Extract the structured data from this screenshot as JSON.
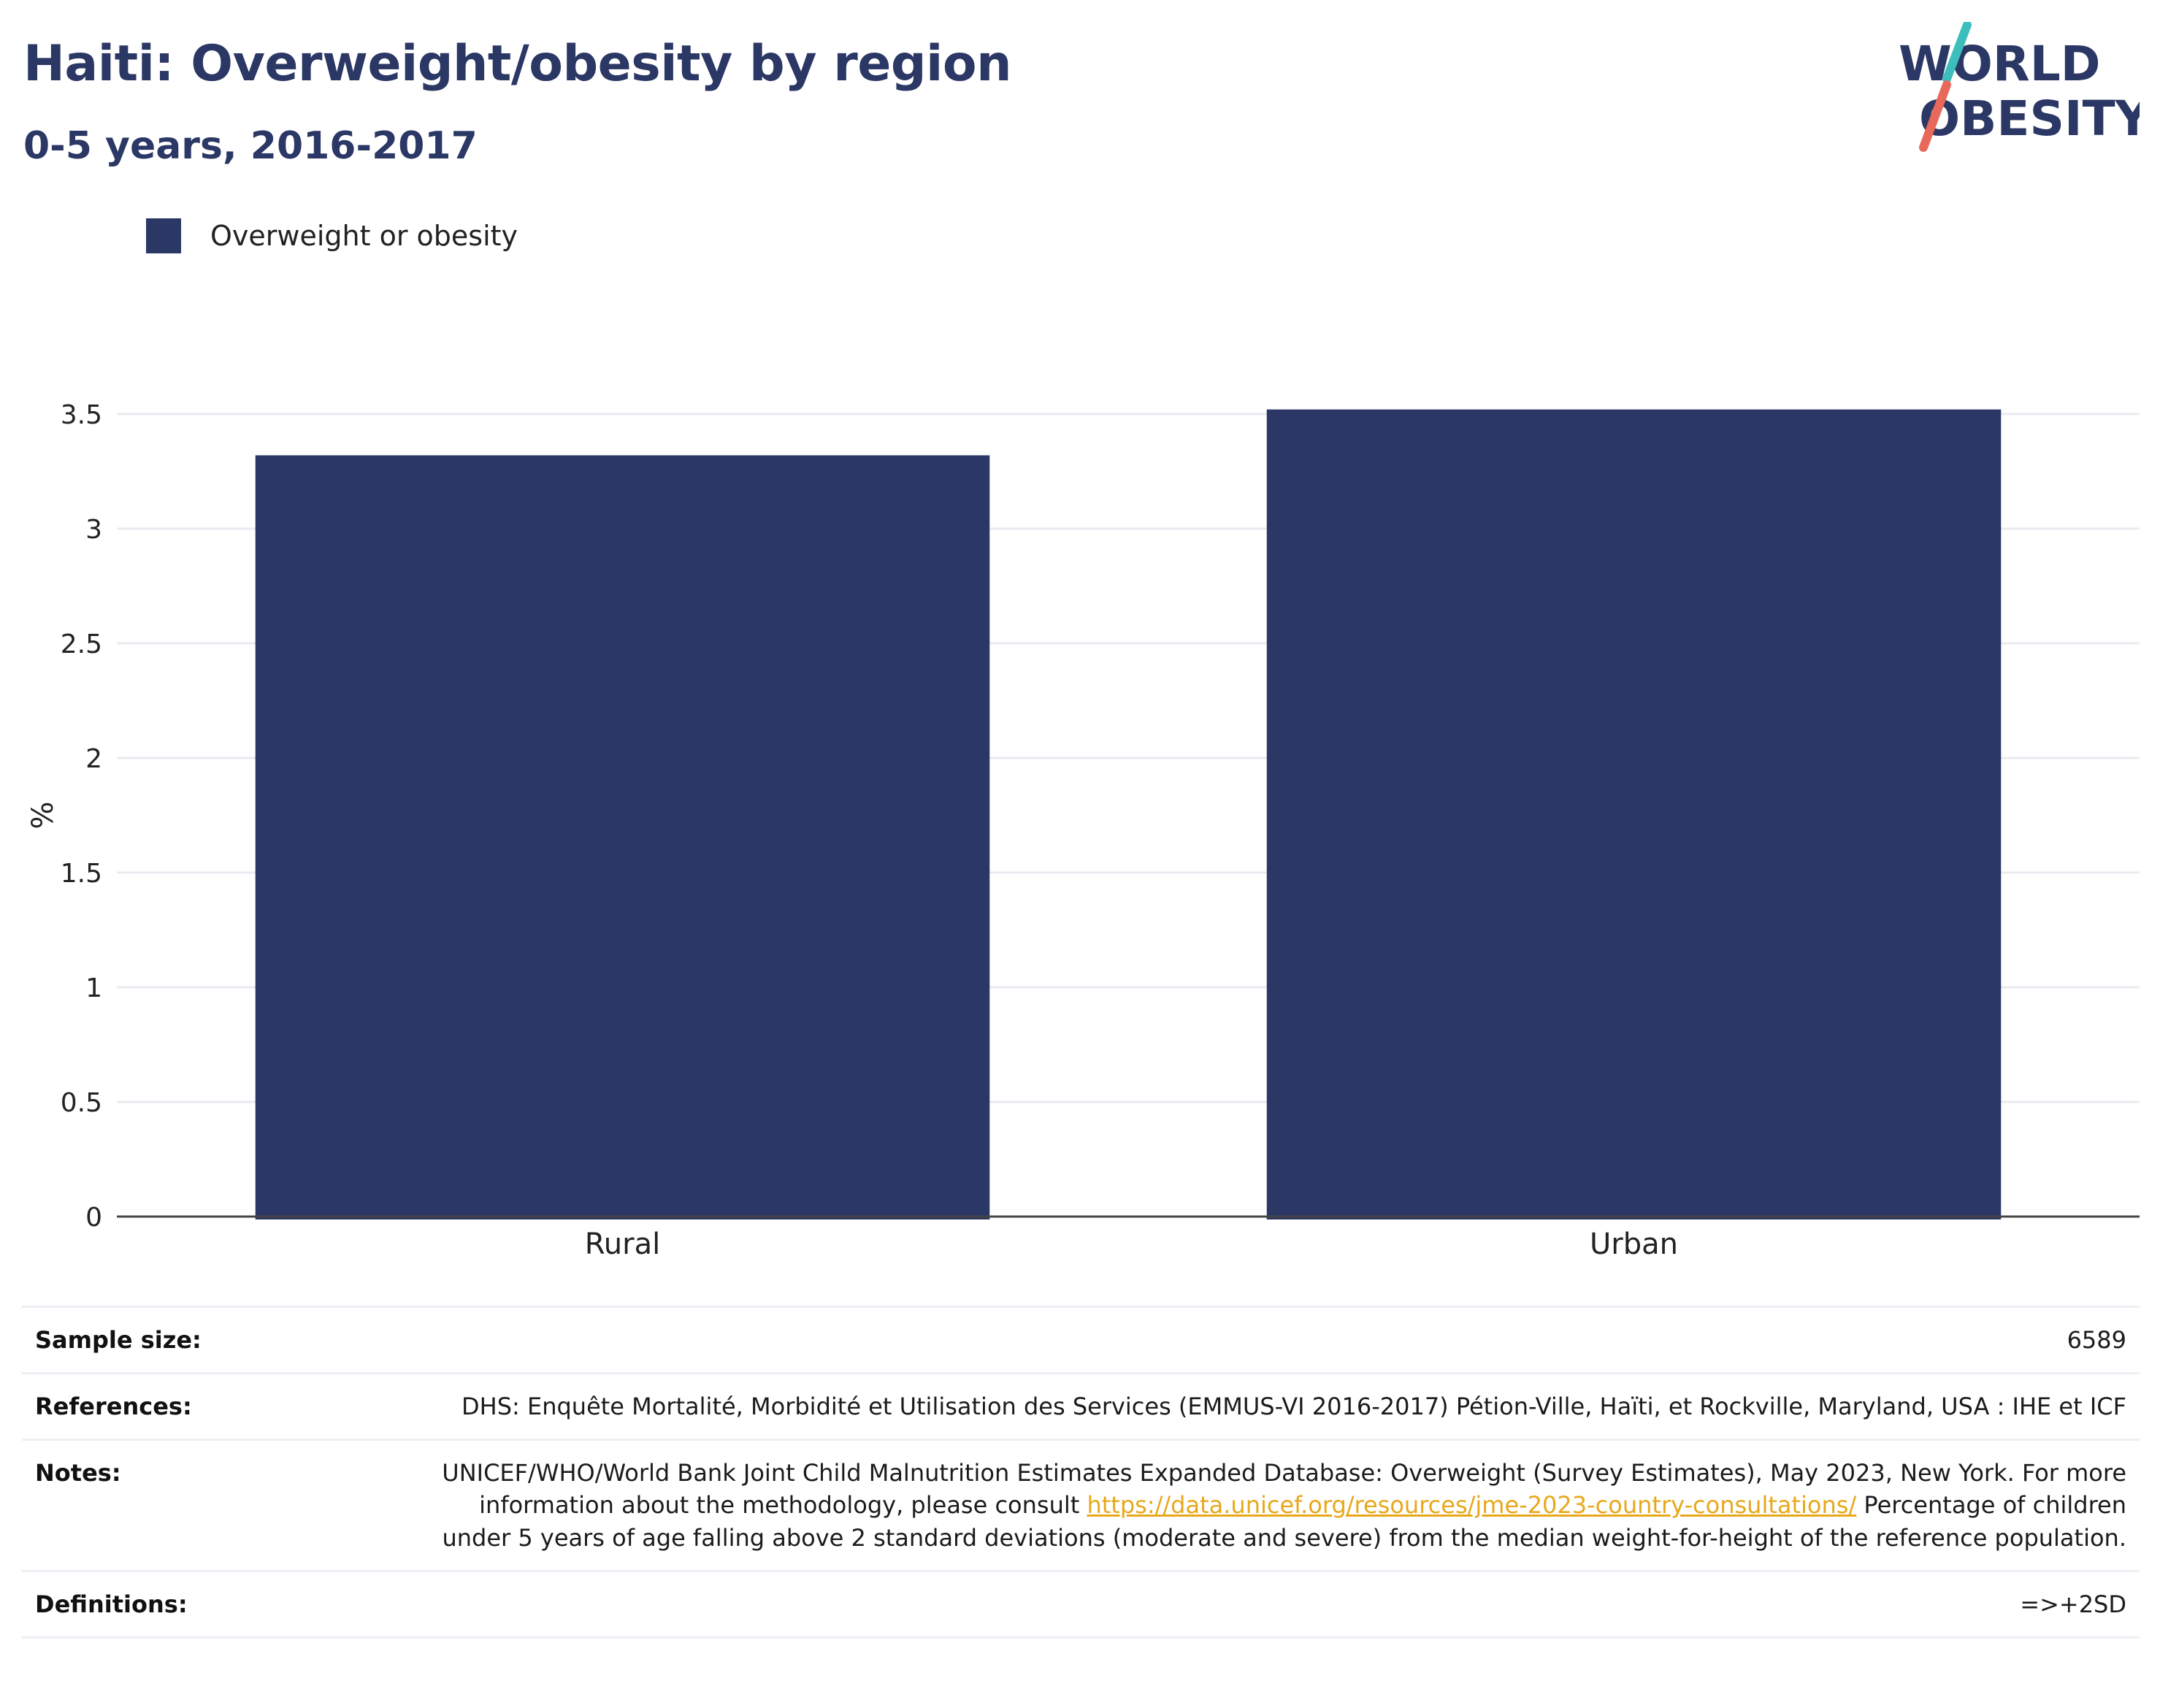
{
  "header": {
    "title": "Haiti: Overweight/obesity by region",
    "subtitle": "0-5 years, 2016-2017"
  },
  "logo": {
    "line1": "WORLD",
    "line2": "OBESITY",
    "accent_teal": "#3cbfbc",
    "accent_coral": "#e8685a"
  },
  "colors": {
    "bar": "#2b3764",
    "heading": "#2b3764",
    "link": "#e8a81c"
  },
  "chart_data": {
    "type": "bar",
    "categories": [
      "Rural",
      "Urban"
    ],
    "series": [
      {
        "name": "Overweight or obesity",
        "values": [
          3.32,
          3.52
        ],
        "color": "#2b3764"
      }
    ],
    "ylabel": "%",
    "ylim": [
      0,
      3.5
    ],
    "yticks": [
      {
        "value": 0,
        "label": "0"
      },
      {
        "value": 0.5,
        "label": "0.5"
      },
      {
        "value": 1,
        "label": "1"
      },
      {
        "value": 1.5,
        "label": "1.5"
      },
      {
        "value": 2,
        "label": "2"
      },
      {
        "value": 2.5,
        "label": "2.5"
      },
      {
        "value": 3,
        "label": "3"
      },
      {
        "value": 3.5,
        "label": "3.5"
      }
    ],
    "grid": true,
    "legend_position": "top-left"
  },
  "info": {
    "sample_size": {
      "label": "Sample size:",
      "value": "6589"
    },
    "references": {
      "label": "References:",
      "value": "DHS: Enquête Mortalité, Morbidité et Utilisation des Services (EMMUS-VI 2016-2017) Pétion-Ville, Haïti, et Rockville, Maryland, USA : IHE et ICF"
    },
    "notes": {
      "label": "Notes:",
      "text_before": "UNICEF/WHO/World Bank Joint Child Malnutrition Estimates Expanded Database: Overweight (Survey Estimates), May 2023, New York. For more information about the methodology, please consult ",
      "link": "https://data.unicef.org/resources/jme-2023-country-consultations/",
      "text_after": " Percentage of children under 5 years of age falling above 2 standard deviations (moderate and severe) from the median weight-for-height of the reference population."
    },
    "definitions": {
      "label": "Definitions:",
      "value": "=>+2SD"
    }
  }
}
